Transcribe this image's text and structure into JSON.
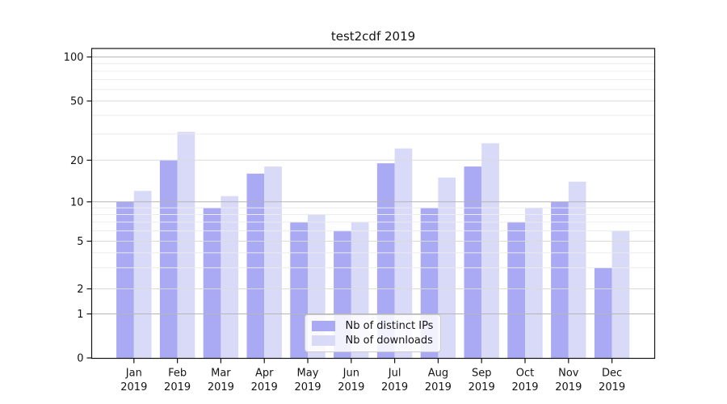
{
  "chart_data": {
    "type": "bar",
    "title": "test2cdf 2019",
    "months": [
      "Jan",
      "Feb",
      "Mar",
      "Apr",
      "May",
      "Jun",
      "Jul",
      "Aug",
      "Sep",
      "Oct",
      "Nov",
      "Dec"
    ],
    "year": "2019",
    "series": [
      {
        "name": "Nb of distinct IPs",
        "color": "#a9a9f4",
        "values": [
          10,
          20,
          9,
          16,
          7,
          6,
          19,
          9,
          18,
          7,
          10,
          3
        ]
      },
      {
        "name": "Nb of downloads",
        "color": "#d9d9f8",
        "values": [
          12,
          31,
          11,
          18,
          8,
          7,
          24,
          15,
          26,
          9,
          14,
          6
        ]
      }
    ],
    "y_ticks": [
      0,
      1,
      2,
      5,
      10,
      20,
      50,
      100
    ],
    "y_minor_gridlines": [
      3,
      4,
      6,
      7,
      8,
      9,
      30,
      40,
      60,
      70,
      80,
      90
    ],
    "ylim": [
      0,
      115
    ],
    "yscale": "log-like",
    "grid": "horizontal, major and minor, drawn above bars",
    "legend_position": "lower center",
    "colors": {
      "spine": "#141414",
      "grid_decade": "#b6b6b6",
      "grid_major": "#dadada",
      "grid_minor": "#ececec",
      "background": "#ffffff"
    }
  }
}
